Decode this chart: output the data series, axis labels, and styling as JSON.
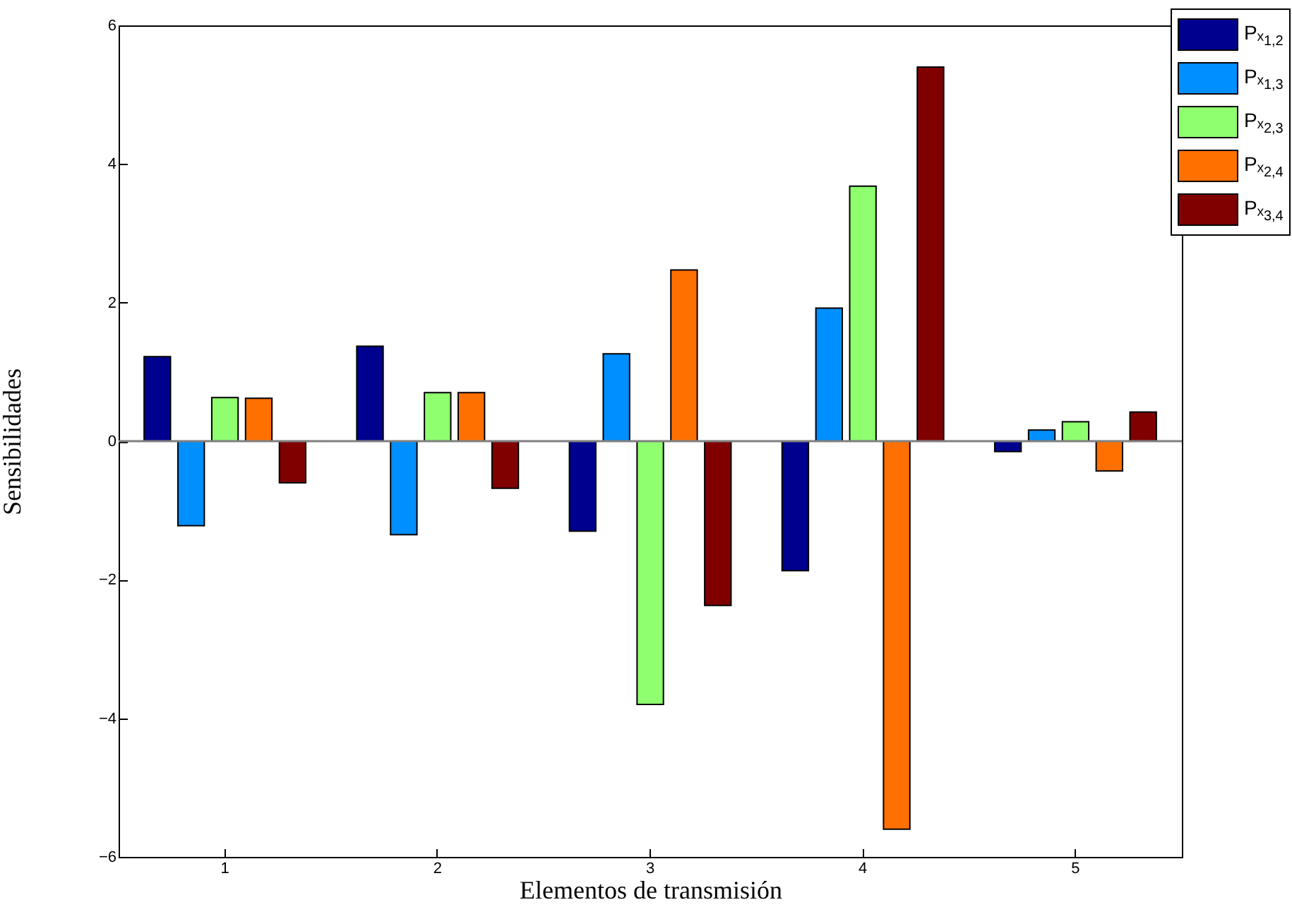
{
  "chart_data": {
    "type": "bar",
    "xlabel": "Elementos de transmisión",
    "ylabel": "Sensibilidades",
    "categories": [
      "1",
      "2",
      "3",
      "4",
      "5"
    ],
    "series": [
      {
        "name": "Pₓ$_{1,2}$",
        "color": "#00008f",
        "values": [
          1.22,
          1.37,
          -1.3,
          -1.87,
          -0.15
        ]
      },
      {
        "name": "Pₓ$_{1,3}$",
        "color": "#008fff",
        "values": [
          -1.22,
          -1.35,
          1.26,
          1.92,
          0.16
        ]
      },
      {
        "name": "Pₓ$_{2,3}$",
        "color": "#8fff6f",
        "values": [
          0.63,
          0.7,
          -3.8,
          3.68,
          0.28
        ]
      },
      {
        "name": "Pₓ$_{2,4}$",
        "color": "#ff7000",
        "values": [
          0.62,
          0.7,
          2.47,
          -5.6,
          -0.43
        ]
      },
      {
        "name": "Pₓ$_{3,4}$",
        "color": "#800000",
        "values": [
          -0.6,
          -0.68,
          -2.37,
          5.4,
          0.42
        ]
      }
    ],
    "ylim": [
      -6,
      6
    ],
    "yticks": [
      -6,
      -4,
      -2,
      0,
      2,
      4,
      6
    ],
    "ref_lines": [
      {
        "axis": "y",
        "value": 0,
        "color": "#808080"
      }
    ],
    "legend": "top right",
    "grid": false
  }
}
